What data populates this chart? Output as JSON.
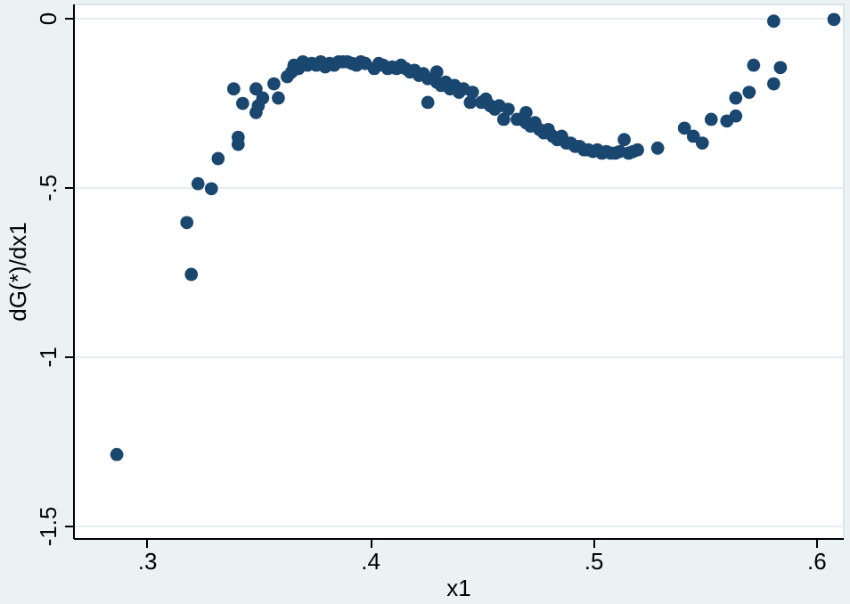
{
  "chart_data": {
    "type": "scatter",
    "xlabel": "x1",
    "ylabel": "dG(*)/dx1",
    "xlim": [
      0.267,
      0.612
    ],
    "ylim": [
      -1.537,
      0.042
    ],
    "xticks": [
      {
        "value": 0.3,
        "label": ".3"
      },
      {
        "value": 0.4,
        "label": ".4"
      },
      {
        "value": 0.5,
        "label": ".5"
      },
      {
        "value": 0.6,
        "label": ".6"
      }
    ],
    "yticks": [
      {
        "value": -1.5,
        "label": "-1.5"
      },
      {
        "value": -1,
        "label": "-1"
      },
      {
        "value": -0.5,
        "label": "-.5"
      },
      {
        "value": 0,
        "label": "0"
      }
    ],
    "grid": "y",
    "marker": "circle",
    "series": [
      {
        "color": "#1a476f",
        "x": [
          0.2866,
          0.318,
          0.32,
          0.323,
          0.329,
          0.332,
          0.341,
          0.341,
          0.339,
          0.343,
          0.349,
          0.35,
          0.349,
          0.352,
          0.357,
          0.359,
          0.363,
          0.365,
          0.366,
          0.368,
          0.37,
          0.372,
          0.374,
          0.376,
          0.378,
          0.38,
          0.382,
          0.384,
          0.386,
          0.388,
          0.39,
          0.392,
          0.394,
          0.396,
          0.398,
          0.402,
          0.404,
          0.406,
          0.408,
          0.41,
          0.412,
          0.414,
          0.416,
          0.418,
          0.42,
          0.422,
          0.424,
          0.426,
          0.43,
          0.432,
          0.434,
          0.436,
          0.438,
          0.44,
          0.442,
          0.446,
          0.45,
          0.452,
          0.454,
          0.456,
          0.458,
          0.462,
          0.466,
          0.47,
          0.472,
          0.474,
          0.476,
          0.478,
          0.48,
          0.482,
          0.484,
          0.486,
          0.488,
          0.49,
          0.492,
          0.494,
          0.496,
          0.498,
          0.5,
          0.502,
          0.504,
          0.506,
          0.508,
          0.51,
          0.512,
          0.516,
          0.518,
          0.52,
          0.426,
          0.43,
          0.445,
          0.46,
          0.47,
          0.514,
          0.529,
          0.541,
          0.545,
          0.549,
          0.553,
          0.56,
          0.564,
          0.564,
          0.57,
          0.572,
          0.581,
          0.584,
          0.581,
          0.608
        ],
        "values": [
          -1.29,
          -0.605,
          -0.758,
          -0.49,
          -0.505,
          -0.416,
          -0.374,
          -0.353,
          -0.21,
          -0.253,
          -0.21,
          -0.26,
          -0.28,
          -0.237,
          -0.195,
          -0.237,
          -0.174,
          -0.16,
          -0.14,
          -0.15,
          -0.13,
          -0.14,
          -0.135,
          -0.14,
          -0.13,
          -0.145,
          -0.135,
          -0.14,
          -0.13,
          -0.13,
          -0.13,
          -0.135,
          -0.14,
          -0.13,
          -0.135,
          -0.15,
          -0.135,
          -0.14,
          -0.15,
          -0.145,
          -0.15,
          -0.14,
          -0.15,
          -0.16,
          -0.155,
          -0.17,
          -0.165,
          -0.18,
          -0.19,
          -0.2,
          -0.19,
          -0.21,
          -0.2,
          -0.22,
          -0.21,
          -0.22,
          -0.25,
          -0.24,
          -0.26,
          -0.27,
          -0.26,
          -0.27,
          -0.3,
          -0.31,
          -0.32,
          -0.31,
          -0.33,
          -0.34,
          -0.33,
          -0.35,
          -0.36,
          -0.35,
          -0.37,
          -0.37,
          -0.38,
          -0.38,
          -0.39,
          -0.39,
          -0.395,
          -0.39,
          -0.4,
          -0.395,
          -0.4,
          -0.4,
          -0.395,
          -0.4,
          -0.395,
          -0.39,
          -0.25,
          -0.16,
          -0.25,
          -0.3,
          -0.28,
          -0.36,
          -0.385,
          -0.326,
          -0.35,
          -0.37,
          -0.3,
          -0.305,
          -0.29,
          -0.237,
          -0.22,
          -0.14,
          -0.195,
          -0.147,
          -0.01,
          -0.005
        ]
      }
    ]
  }
}
